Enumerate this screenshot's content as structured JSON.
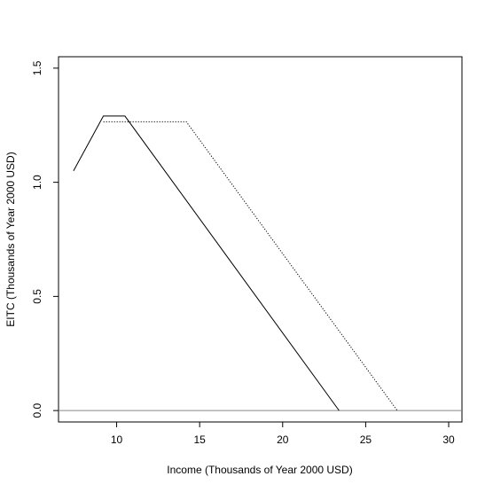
{
  "chart_data": {
    "type": "line",
    "title": "",
    "xlabel": "Income (Thousands of Year 2000 USD)",
    "ylabel": "EITC (Thousands of Year 2000 USD)",
    "xlim": [
      6.5,
      30.8
    ],
    "ylim": [
      -0.05,
      1.55
    ],
    "x_ticks": [
      "10",
      "15",
      "20",
      "25",
      "30"
    ],
    "y_ticks": [
      "0.0",
      "0.5",
      "1.0",
      "1.5"
    ],
    "grid": false,
    "legend": "none",
    "series": [
      {
        "style": "solid",
        "color": "#000000",
        "points": [
          [
            7.4,
            1.05
          ],
          [
            9.2,
            1.29
          ],
          [
            10.5,
            1.29
          ],
          [
            23.4,
            0.0
          ]
        ]
      },
      {
        "style": "dotted",
        "color": "#000000",
        "points": [
          [
            9.2,
            1.265
          ],
          [
            14.2,
            1.265
          ],
          [
            26.9,
            0.0
          ]
        ]
      }
    ],
    "reference_lines": [
      {
        "orientation": "horizontal",
        "y": 0.0,
        "color": "#888888"
      }
    ]
  }
}
